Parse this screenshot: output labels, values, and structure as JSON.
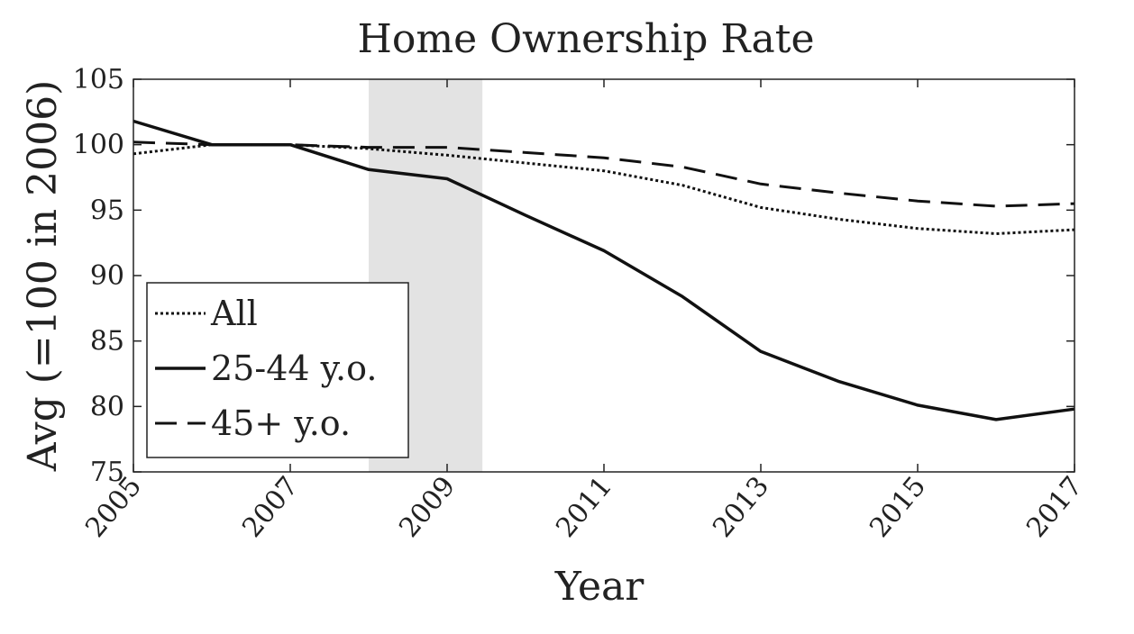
{
  "chart_data": {
    "type": "line",
    "title": "Home Ownership Rate",
    "xlabel": "Year",
    "ylabel": "Avg (=100 in 2006)",
    "xlim": [
      2005,
      2017
    ],
    "ylim": [
      75,
      105
    ],
    "x_ticks": [
      "2005",
      "2007",
      "2009",
      "2011",
      "2013",
      "2015",
      "2017"
    ],
    "y_ticks": [
      "75",
      "80",
      "85",
      "90",
      "95",
      "100",
      "105"
    ],
    "x": [
      2005,
      2006,
      2007,
      2008,
      2009,
      2010,
      2011,
      2012,
      2013,
      2014,
      2015,
      2016,
      2017
    ],
    "shaded_region": {
      "x_start": 2008,
      "x_end": 2009.45,
      "color": "#e3e3e3"
    },
    "grid": false,
    "legend_position": "bottom-left",
    "series": [
      {
        "name": "All",
        "style": "dotted",
        "values": [
          99.3,
          100.0,
          100.0,
          99.7,
          99.2,
          98.6,
          98.0,
          96.9,
          95.2,
          94.3,
          93.6,
          93.2,
          93.5
        ]
      },
      {
        "name": "25-44 y.o.",
        "style": "solid",
        "values": [
          101.8,
          100.0,
          100.0,
          98.1,
          97.4,
          94.6,
          91.9,
          88.4,
          84.2,
          81.9,
          80.1,
          79.0,
          79.8
        ]
      },
      {
        "name": "45+ y.o.",
        "style": "dashed",
        "values": [
          100.2,
          100.0,
          100.0,
          99.8,
          99.8,
          99.4,
          99.0,
          98.3,
          97.0,
          96.3,
          95.7,
          95.3,
          95.5
        ]
      }
    ]
  }
}
